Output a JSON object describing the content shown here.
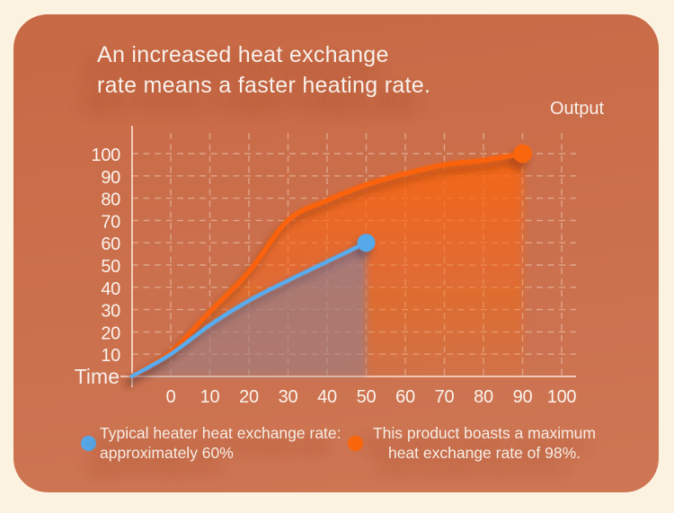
{
  "title": {
    "line1": "An increased heat exchange",
    "line2": "rate means a faster heating rate."
  },
  "axes": {
    "x_title": "Time",
    "y_title": "Output"
  },
  "legend": {
    "item1": {
      "marker_color": "#55a8ea",
      "line1": "Typical heater heat exchange rate:",
      "line2": "approximately 60%"
    },
    "item2": {
      "marker_color": "#fa660c",
      "line1": "This product boasts a maximum",
      "line2": "heat exchange rate of 98%."
    }
  },
  "colors": {
    "page_background": "#fcf2e0",
    "panel_top": "#c86945",
    "panel_bottom": "#ce7654",
    "grid": "rgba(255,238,226,0.42)",
    "axis": "rgba(255,243,233,0.8)",
    "text": "#f8f0ea",
    "blue_series": "#58abef",
    "orange_series": "#fa6207",
    "gray_fill": "#8d8095"
  },
  "chart_data": {
    "type": "line",
    "title": "An increased heat exchange rate means a faster heating rate.",
    "xlabel": "Time",
    "ylabel": "Output",
    "x_ticks": [
      0,
      10,
      20,
      30,
      40,
      50,
      60,
      70,
      80,
      90,
      100
    ],
    "y_ticks": [
      10,
      20,
      30,
      40,
      50,
      60,
      70,
      80,
      90,
      100
    ],
    "xlim": [
      0,
      100
    ],
    "ylim": [
      0,
      100
    ],
    "grid": "dashed",
    "legend_position": "bottom",
    "series": [
      {
        "name": "This product boasts a maximum heat exchange rate of 98%.",
        "color": "#fa6207",
        "marker_color": "#fa660c",
        "endpoint": [
          90,
          100
        ],
        "fill": "orange-gradient",
        "points": [
          [
            -10,
            0
          ],
          [
            0,
            11
          ],
          [
            10,
            29
          ],
          [
            20,
            47
          ],
          [
            30,
            70
          ],
          [
            40,
            79
          ],
          [
            50,
            86
          ],
          [
            60,
            91
          ],
          [
            70,
            95
          ],
          [
            80,
            97
          ],
          [
            90,
            100
          ]
        ]
      },
      {
        "name": "Typical heater heat exchange rate: approximately 60%",
        "color": "#58abef",
        "marker_color": "#55a8ea",
        "endpoint": [
          50,
          60
        ],
        "fill": "gray",
        "points": [
          [
            -10,
            0
          ],
          [
            0,
            10
          ],
          [
            10,
            23
          ],
          [
            20,
            34
          ],
          [
            30,
            43
          ],
          [
            40,
            51.5
          ],
          [
            50,
            60
          ]
        ]
      }
    ]
  }
}
